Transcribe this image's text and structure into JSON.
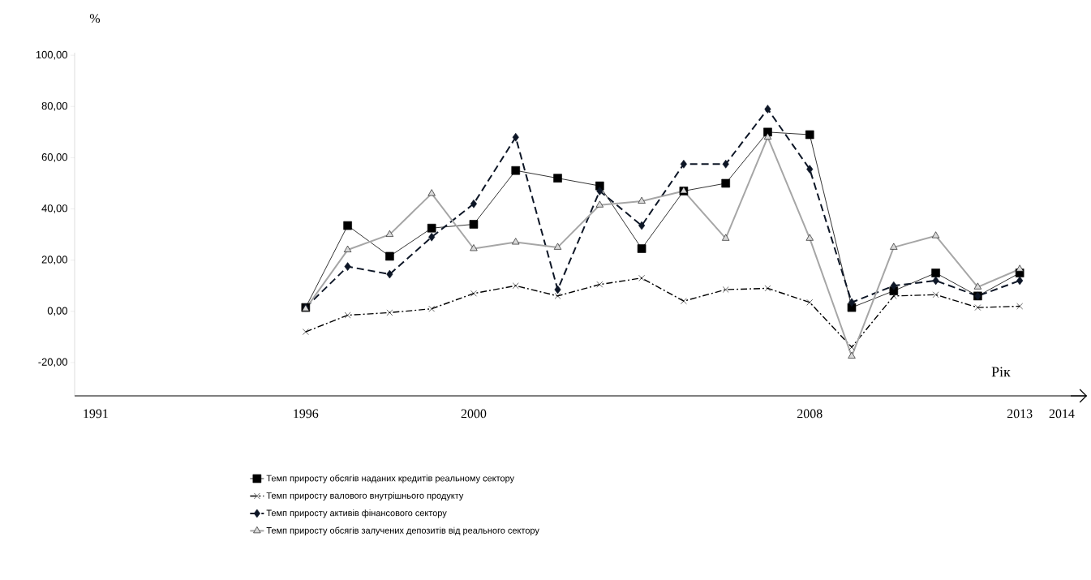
{
  "chart_data": {
    "type": "line",
    "ylabel": "%",
    "xlabel": "Рік",
    "x": [
      1996,
      1997,
      1998,
      1999,
      2000,
      2001,
      2002,
      2003,
      2004,
      2005,
      2006,
      2007,
      2008,
      2009,
      2010,
      2011,
      2012,
      2013
    ],
    "xlim": [
      1990.5,
      2014.6
    ],
    "ylim": [
      -33,
      101
    ],
    "xticks": [
      1991,
      1996,
      2000,
      2008,
      2013,
      2014
    ],
    "yticks": [
      {
        "value": -20,
        "label": "-20,00"
      },
      {
        "value": 0,
        "label": "0,00"
      },
      {
        "value": 20,
        "label": "20,00"
      },
      {
        "value": 40,
        "label": "40,00"
      },
      {
        "value": 60,
        "label": "60,00"
      },
      {
        "value": 80,
        "label": "80,00"
      },
      {
        "value": 100,
        "label": "100,00"
      }
    ],
    "legend": "bottom",
    "grid": false,
    "series": [
      {
        "name": "Темп приросту обсягів наданих кредитів реальному сектору",
        "color": "#000000",
        "marker": "square",
        "line_style": "solid",
        "values": [
          1.5,
          33.5,
          21.5,
          32.5,
          34,
          55,
          52,
          49,
          24.5,
          47,
          50,
          70,
          69,
          1.5,
          8,
          15,
          6,
          15
        ]
      },
      {
        "name": "Темп приросту валового внутрішнього продукту",
        "color": "#000000",
        "marker": "cross",
        "line_style": "dashdot",
        "values": [
          -8,
          -1.5,
          -0.5,
          1,
          7,
          10,
          6,
          10.5,
          13,
          4,
          8.5,
          9,
          3.5,
          -14,
          6,
          6.5,
          1.5,
          2
        ]
      },
      {
        "name": "Темп приросту активів фінансового сектору",
        "color": "#0d1626",
        "marker": "diamond",
        "line_style": "dashed",
        "values": [
          1.5,
          17.5,
          14.5,
          29,
          42,
          68,
          8.5,
          47,
          33.5,
          57.5,
          57.5,
          79,
          55.5,
          3.5,
          10,
          12,
          6,
          12
        ]
      },
      {
        "name": "Темп приросту обсягів залучених депозитів від реального сектору",
        "color": "#a6a6a6",
        "marker": "triangle",
        "line_style": "solid",
        "values": [
          1,
          24,
          30,
          46,
          24.5,
          27,
          25,
          41.5,
          43,
          47,
          28.5,
          68,
          28.5,
          -17.5,
          25,
          29.5,
          9.5,
          16.5
        ]
      }
    ]
  }
}
